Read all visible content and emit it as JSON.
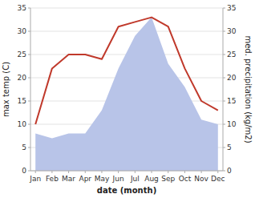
{
  "chart_data": {
    "type": "line",
    "xlabel": "date (month)",
    "ylabel": "max temp (C)",
    "y2label": "med. precipitation (kg/m2)",
    "categories": [
      "Jan",
      "Feb",
      "Mar",
      "Apr",
      "May",
      "Jun",
      "Jul",
      "Aug",
      "Sep",
      "Oct",
      "Nov",
      "Dec"
    ],
    "series": [
      {
        "type": "area",
        "axis": "y2",
        "color": "#b8c4e8",
        "values": [
          8,
          7,
          8,
          8,
          13,
          22,
          29,
          33,
          23,
          18,
          11,
          10
        ]
      },
      {
        "type": "line",
        "color": "#c0392b",
        "values": [
          10,
          22,
          25,
          25,
          24,
          31,
          32,
          33,
          31,
          22,
          15,
          13
        ]
      }
    ],
    "ylim": [
      0,
      35
    ],
    "yticks": [
      0,
      5,
      10,
      15,
      20,
      25,
      30,
      35
    ],
    "y2lim": [
      0,
      35
    ],
    "y2ticks": [
      0,
      5,
      10,
      15,
      20,
      25,
      30,
      35
    ],
    "grid": true
  }
}
